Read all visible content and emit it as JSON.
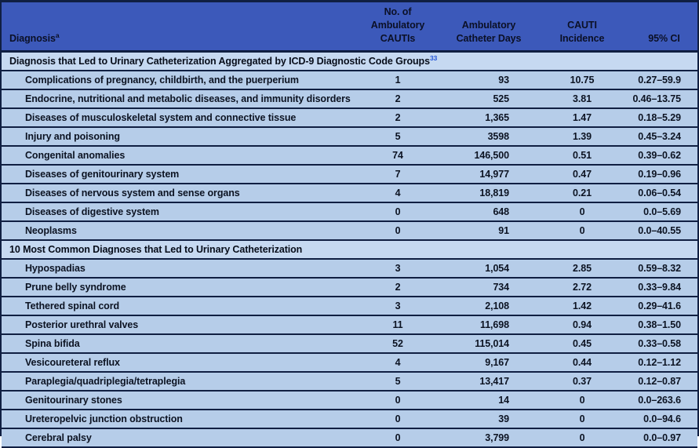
{
  "colors": {
    "border": "#101f42",
    "header_bg": "#3c59ba",
    "header_text": "#0b1026",
    "section_bg": "#c6d9f1",
    "row_bg": "#b6cde9",
    "citation": "#2456d8"
  },
  "table": {
    "header": {
      "diagnosis_label": "Diagnosis",
      "diagnosis_superscript": "a",
      "col2_line1": "No. of Ambulatory",
      "col2_line2": "CAUTIs",
      "col3_line1": "Ambulatory",
      "col3_line2": "Catheter Days",
      "col4_label": "CAUTI Incidence",
      "col5_label": "95% CI"
    },
    "sections": [
      {
        "title": "Diagnosis that Led to Urinary Catheterization Aggregated by ICD-9 Diagnostic Code Groups",
        "citation": "33",
        "rows": [
          {
            "diagnosis": "Complications of pregnancy, childbirth, and the puerperium",
            "cautis": "1",
            "catheter_days": "93",
            "incidence": "10.75",
            "ci": "0.27–59.9"
          },
          {
            "diagnosis": "Endocrine, nutritional and metabolic diseases, and immunity disorders",
            "cautis": "2",
            "catheter_days": "525",
            "incidence": "3.81",
            "ci": "0.46–13.75"
          },
          {
            "diagnosis": "Diseases of musculoskeletal system and connective tissue",
            "cautis": "2",
            "catheter_days": "1,365",
            "incidence": "1.47",
            "ci": "0.18–5.29"
          },
          {
            "diagnosis": "Injury and poisoning",
            "cautis": "5",
            "catheter_days": "3598",
            "incidence": "1.39",
            "ci": "0.45–3.24"
          },
          {
            "diagnosis": "Congenital anomalies",
            "cautis": "74",
            "catheter_days": "146,500",
            "incidence": "0.51",
            "ci": "0.39–0.62"
          },
          {
            "diagnosis": "Diseases of genitourinary system",
            "cautis": "7",
            "catheter_days": "14,977",
            "incidence": "0.47",
            "ci": "0.19–0.96"
          },
          {
            "diagnosis": "Diseases of nervous system and sense organs",
            "cautis": "4",
            "catheter_days": "18,819",
            "incidence": "0.21",
            "ci": "0.06–0.54"
          },
          {
            "diagnosis": "Diseases of digestive system",
            "cautis": "0",
            "catheter_days": "648",
            "incidence": "0",
            "ci": "0.0–5.69"
          },
          {
            "diagnosis": "Neoplasms",
            "cautis": "0",
            "catheter_days": "91",
            "incidence": "0",
            "ci": "0.0–40.55"
          }
        ]
      },
      {
        "title": "10 Most Common Diagnoses that Led to Urinary Catheterization",
        "citation": "",
        "rows": [
          {
            "diagnosis": "Hypospadias",
            "cautis": "3",
            "catheter_days": "1,054",
            "incidence": "2.85",
            "ci": "0.59–8.32"
          },
          {
            "diagnosis": "Prune belly syndrome",
            "cautis": "2",
            "catheter_days": "734",
            "incidence": "2.72",
            "ci": "0.33–9.84"
          },
          {
            "diagnosis": "Tethered spinal cord",
            "cautis": "3",
            "catheter_days": "2,108",
            "incidence": "1.42",
            "ci": "0.29–41.6"
          },
          {
            "diagnosis": "Posterior urethral valves",
            "cautis": "11",
            "catheter_days": "11,698",
            "incidence": "0.94",
            "ci": "0.38–1.50"
          },
          {
            "diagnosis": "Spina bifida",
            "cautis": "52",
            "catheter_days": "115,014",
            "incidence": "0.45",
            "ci": "0.33–0.58"
          },
          {
            "diagnosis": "Vesicoureteral reflux",
            "cautis": "4",
            "catheter_days": "9,167",
            "incidence": "0.44",
            "ci": "0.12–1.12"
          },
          {
            "diagnosis": "Paraplegia/quadriplegia/tetraplegia",
            "cautis": "5",
            "catheter_days": "13,417",
            "incidence": "0.37",
            "ci": "0.12–0.87"
          },
          {
            "diagnosis": "Genitourinary stones",
            "cautis": "0",
            "catheter_days": "14",
            "incidence": "0",
            "ci": "0.0–263.6"
          },
          {
            "diagnosis": "Ureteropelvic junction obstruction",
            "cautis": "0",
            "catheter_days": "39",
            "incidence": "0",
            "ci": "0.0–94.6"
          },
          {
            "diagnosis": "Cerebral palsy",
            "cautis": "0",
            "catheter_days": "3,799",
            "incidence": "0",
            "ci": "0.0–0.97"
          }
        ]
      }
    ]
  }
}
